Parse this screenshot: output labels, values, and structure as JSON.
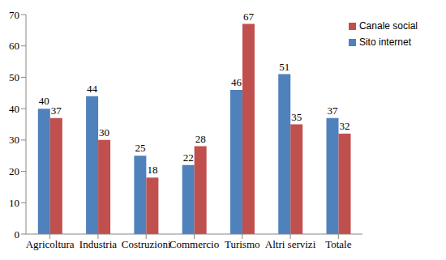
{
  "chart_data": {
    "type": "bar",
    "categories": [
      "Agricoltura",
      "Industria",
      "Costruzioni",
      "Commercio",
      "Turismo",
      "Altri servizi",
      "Totale"
    ],
    "series": [
      {
        "name": "Sito internet",
        "color": "#4f81bd",
        "values": [
          40,
          44,
          25,
          22,
          46,
          51,
          37
        ]
      },
      {
        "name": "Canale social",
        "color": "#c0504d",
        "values": [
          37,
          30,
          18,
          28,
          67,
          35,
          32
        ]
      }
    ],
    "ylim": [
      0,
      70
    ],
    "yticks": [
      0,
      10,
      20,
      30,
      40,
      50,
      60,
      70
    ],
    "grid": false,
    "legend": "upper right",
    "data_labels": true
  }
}
